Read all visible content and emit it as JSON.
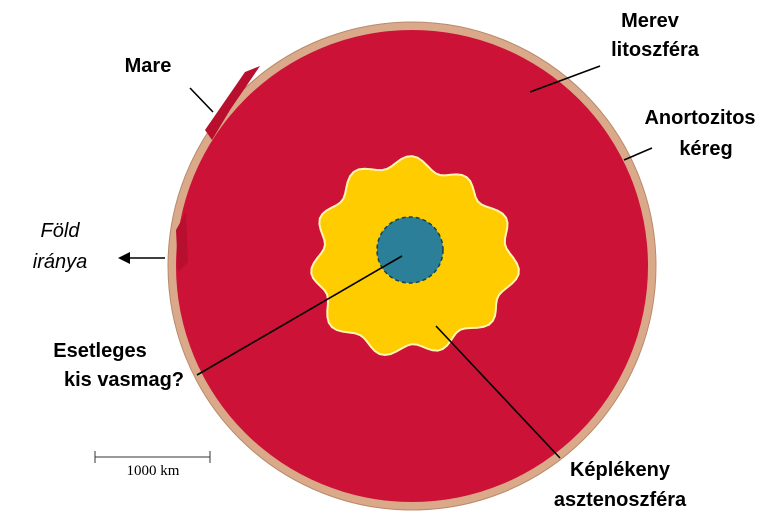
{
  "labels": {
    "lithosphere": [
      "Merev",
      "litoszféra"
    ],
    "crust": [
      "Anortozitos",
      "kéreg"
    ],
    "mare": [
      "Mare"
    ],
    "earth_direction": [
      "Föld",
      "iránya"
    ],
    "core": [
      "Esetleges",
      "kis vasmag?"
    ],
    "asthenosphere": [
      "Képlékeny",
      "asztenoszféra"
    ]
  },
  "scale_bar": "1000 km"
}
